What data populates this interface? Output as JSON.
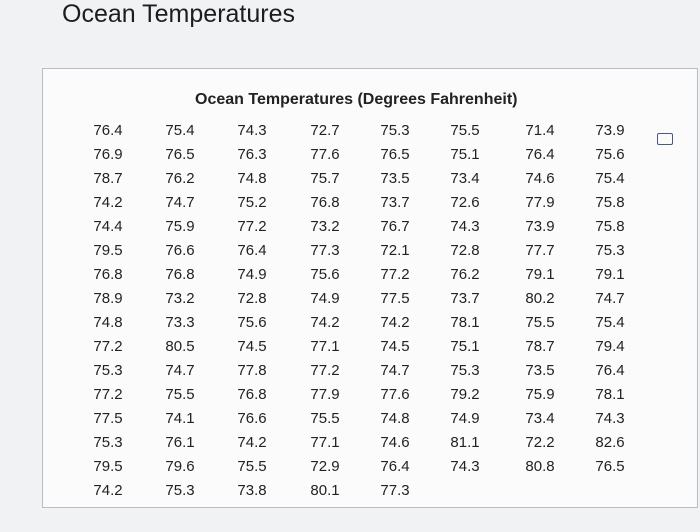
{
  "header": {
    "title": "Ocean Temperatures"
  },
  "table": {
    "title": "Ocean Temperatures (Degrees Fahrenheit)",
    "columns": [
      [
        76.4,
        76.9,
        78.7,
        74.2,
        74.4,
        79.5,
        76.8,
        78.9,
        74.8,
        77.2,
        75.3,
        77.2,
        77.5,
        75.3,
        79.5,
        74.2
      ],
      [
        75.4,
        76.5,
        76.2,
        74.7,
        75.9,
        76.6,
        76.8,
        73.2,
        73.3,
        80.5,
        74.7,
        75.5,
        74.1,
        76.1,
        79.6,
        75.3
      ],
      [
        74.3,
        76.3,
        74.8,
        75.2,
        77.2,
        76.4,
        74.9,
        72.8,
        75.6,
        74.5,
        77.8,
        76.8,
        76.6,
        74.2,
        75.5,
        73.8
      ],
      [
        72.7,
        77.6,
        75.7,
        76.8,
        73.2,
        77.3,
        75.6,
        74.9,
        74.2,
        77.1,
        77.2,
        77.9,
        75.5,
        77.1,
        72.9,
        80.1
      ],
      [
        75.3,
        76.5,
        73.5,
        73.7,
        76.7,
        72.1,
        77.2,
        77.5,
        74.2,
        74.5,
        74.7,
        77.6,
        74.8,
        74.6,
        76.4,
        77.3
      ],
      [
        75.5,
        75.1,
        73.4,
        72.6,
        74.3,
        72.8,
        76.2,
        73.7,
        78.1,
        75.1,
        75.3,
        79.2,
        74.9,
        81.1,
        74.3
      ],
      [
        71.4,
        76.4,
        74.6,
        77.9,
        73.9,
        77.7,
        79.1,
        80.2,
        75.5,
        78.7,
        73.5,
        75.9,
        73.4,
        72.2,
        80.8
      ],
      [
        73.9,
        75.6,
        75.4,
        75.8,
        75.8,
        75.3,
        79.1,
        74.7,
        75.4,
        79.4,
        76.4,
        78.1,
        74.3,
        82.6,
        76.5
      ]
    ]
  }
}
